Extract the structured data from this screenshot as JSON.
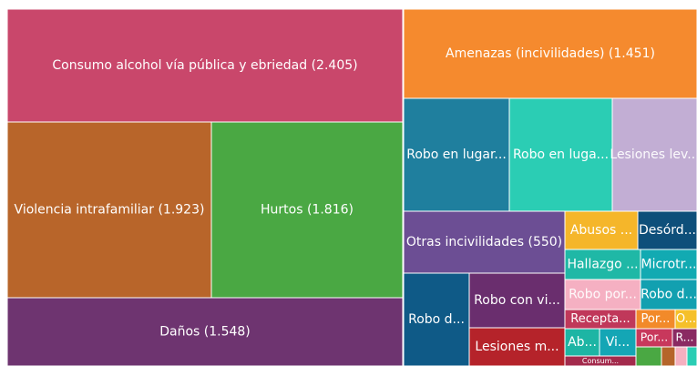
{
  "chart_data": {
    "type": "treemap",
    "categories": [
      "Consumo alcohol vía pública y ebriedad (2.405)",
      "Violencia intrafamiliar (1.923)",
      "Hurtos (1.816)",
      "Daños (1.548)",
      "Amenazas (incivilidades) (1.451)",
      "Robo en lugar...",
      "Robo en luga...",
      "Lesiones lev...",
      "Otras incivilidades (550)",
      "Robo d...",
      "Robo con vi...",
      "Lesiones m...",
      "Abusos ...",
      "Desórd...",
      "Hallazgo ...",
      "Microtr...",
      "Robo por...",
      "Robo d...",
      "Recepta...",
      "Por...",
      "O...",
      "Ab...",
      "Vi...",
      "Por...",
      "R...",
      "Consum...",
      null,
      null,
      null,
      null
    ],
    "values": [
      2405,
      1923,
      1816,
      1548,
      1451,
      650,
      640,
      525,
      550,
      330,
      285,
      200,
      150,
      125,
      125,
      93,
      125,
      93,
      75,
      41,
      23,
      52,
      55,
      36,
      25,
      39,
      27,
      14,
      10,
      8
    ],
    "colors": [
      "#c9476b",
      "#b8652a",
      "#4aa843",
      "#6e3470",
      "#f58a2e",
      "#1f7f9e",
      "#2bcdb4",
      "#c2aed4",
      "#6c4e94",
      "#0f5a87",
      "#6a2e6e",
      "#b5232a",
      "#f5b62a",
      "#0e4f7a",
      "#1fb8a6",
      "#12aab2",
      "#f5b0c2",
      "#12a0b0",
      "#c0385a",
      "#f28a2a",
      "#f5c02a",
      "#1db5a4",
      "#14a6b5",
      "#c8385c",
      "#8a2a62",
      "#a32a4c",
      "#4aa843",
      "#b5652a",
      "#f5b0c0",
      "#2bcdb4"
    ]
  }
}
